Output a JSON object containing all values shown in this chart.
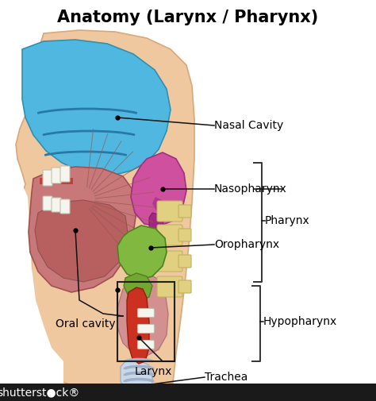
{
  "title": "Anatomy (Larynx / Pharynx)",
  "title_fontsize": 15,
  "title_fontweight": "bold",
  "bg_color": "#FFFFFF",
  "skin_color": "#F0C8A0",
  "skin_edge": "#D8A878",
  "blue_color": "#50B8E0",
  "blue_dark": "#3090B0",
  "magenta_color": "#D050A0",
  "magenta_dark": "#A03080",
  "green_color": "#80B840",
  "green_dark": "#508020",
  "red_color": "#CC3020",
  "trachea_color": "#A0B0C8",
  "trachea_light": "#C8D8E8",
  "bone_color": "#E0D080",
  "bone_edge": "#C0B060",
  "tissue_color": "#C87878",
  "tissue_dark": "#A05050",
  "tongue_color": "#B86060",
  "pink_throat": "#D49090",
  "white_color": "#F5F5EE",
  "label_fontsize": 10,
  "labels": {
    "nasal_cavity": "Nasal Cavity",
    "nasopharynx": "Nasopharynx",
    "pharynx": "Pharynx",
    "oropharynx": "Oropharynx",
    "hypopharynx": "Hypopharynx",
    "oral_cavity": "Oral cavity",
    "larynx": "Larynx",
    "trachea": "Trachea"
  },
  "shutterstock_color": "#222222",
  "shutterstock_bg": "#1A1A1A"
}
